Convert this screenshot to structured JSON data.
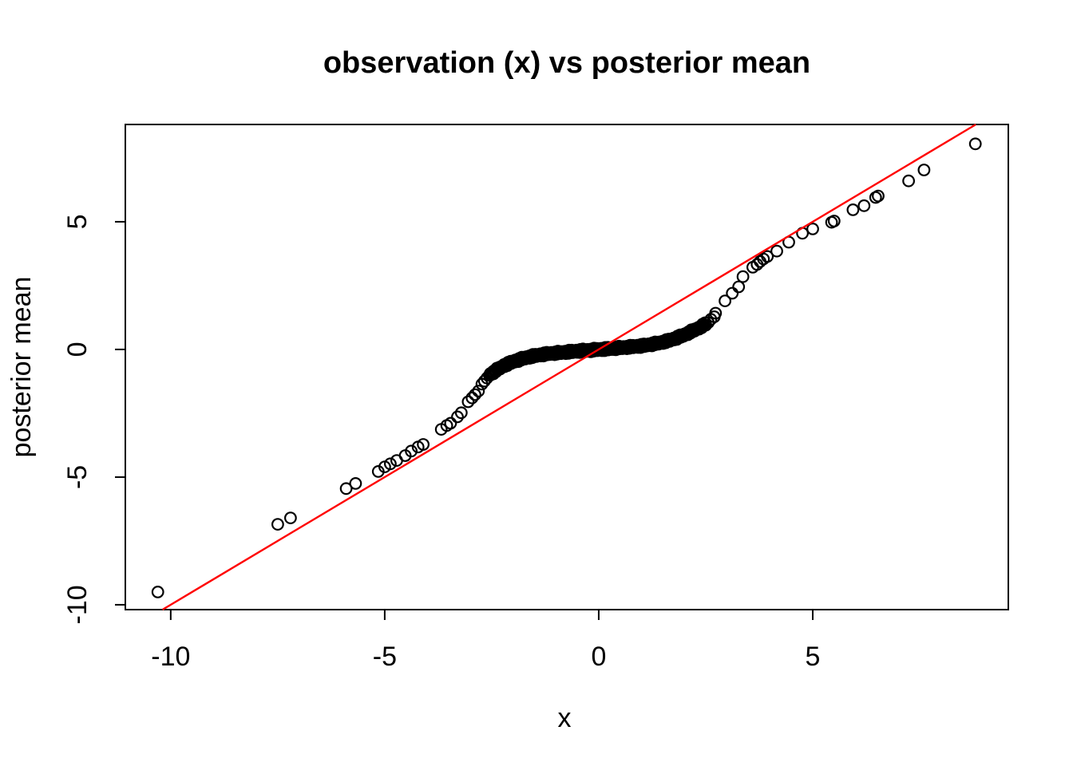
{
  "page": {
    "background": "#FFFFFF"
  },
  "chart_data": {
    "type": "scatter",
    "title": "observation (x) vs posterior mean",
    "xlabel": "x",
    "ylabel": "posterior mean",
    "xlim": [
      -11.06,
      9.57
    ],
    "ylim": [
      -10.19,
      8.81
    ],
    "x_ticks": [
      -10,
      -5,
      0,
      5
    ],
    "y_ticks": [
      -10,
      -5,
      0,
      5
    ],
    "grid": false,
    "legend": null,
    "marker": {
      "shape": "open-circle",
      "color": "#000000",
      "radius_px": 6.8,
      "stroke_px": 2.2
    },
    "reference_line": {
      "type": "identity",
      "intercept": 0,
      "slope": 1,
      "color": "#FF0000"
    },
    "points": [
      [
        -10.3,
        -9.5
      ],
      [
        -7.5,
        -6.85
      ],
      [
        -7.2,
        -6.6
      ],
      [
        -5.9,
        -5.45
      ],
      [
        -5.68,
        -5.25
      ],
      [
        -5.15,
        -4.78
      ],
      [
        -5.0,
        -4.6
      ],
      [
        -4.87,
        -4.48
      ],
      [
        -4.72,
        -4.35
      ],
      [
        -4.52,
        -4.16
      ],
      [
        -4.38,
        -3.98
      ],
      [
        -4.22,
        -3.82
      ],
      [
        -4.1,
        -3.72
      ],
      [
        -3.68,
        -3.13
      ],
      [
        -3.55,
        -2.98
      ],
      [
        -3.46,
        -2.89
      ],
      [
        -3.3,
        -2.64
      ],
      [
        -3.21,
        -2.48
      ],
      [
        -3.05,
        -2.05
      ],
      [
        -2.96,
        -1.9
      ],
      [
        -2.89,
        -1.77
      ],
      [
        -2.81,
        -1.63
      ],
      [
        -2.73,
        -1.36
      ],
      [
        -2.67,
        -1.24
      ],
      [
        -2.61,
        -1.12
      ],
      [
        -2.55,
        -1.02
      ],
      [
        2.5,
        0.95
      ],
      [
        2.56,
        1.05
      ],
      [
        2.62,
        1.18
      ],
      [
        2.7,
        1.28
      ],
      [
        2.73,
        1.42
      ],
      [
        2.95,
        1.9
      ],
      [
        3.12,
        2.2
      ],
      [
        3.27,
        2.45
      ],
      [
        3.37,
        2.85
      ],
      [
        3.6,
        3.22
      ],
      [
        3.7,
        3.33
      ],
      [
        3.77,
        3.44
      ],
      [
        3.85,
        3.54
      ],
      [
        3.94,
        3.64
      ],
      [
        4.16,
        3.85
      ],
      [
        4.44,
        4.2
      ],
      [
        4.76,
        4.55
      ],
      [
        5.0,
        4.72
      ],
      [
        5.44,
        4.98
      ],
      [
        5.5,
        5.03
      ],
      [
        5.94,
        5.47
      ],
      [
        6.2,
        5.63
      ],
      [
        6.47,
        5.95
      ],
      [
        6.53,
        6.01
      ],
      [
        7.24,
        6.6
      ],
      [
        7.6,
        7.03
      ],
      [
        8.8,
        8.05
      ]
    ],
    "dense_band": {
      "description": "several hundred overlapping open circles tracing a flat S-curve: posterior means strongly shrunk toward 0 for |x| < 2.5",
      "x_range": [
        -2.55,
        2.5
      ],
      "n_points": 330,
      "jitter_y": 0.07,
      "curve": [
        [
          -2.55,
          -1.0
        ],
        [
          -2.4,
          -0.82
        ],
        [
          -2.2,
          -0.62
        ],
        [
          -2.0,
          -0.48
        ],
        [
          -1.8,
          -0.37
        ],
        [
          -1.6,
          -0.28
        ],
        [
          -1.4,
          -0.22
        ],
        [
          -1.2,
          -0.17
        ],
        [
          -1.0,
          -0.14
        ],
        [
          -0.8,
          -0.11
        ],
        [
          -0.6,
          -0.08
        ],
        [
          -0.4,
          -0.05
        ],
        [
          -0.2,
          -0.03
        ],
        [
          0.0,
          0.0
        ],
        [
          0.2,
          0.02
        ],
        [
          0.4,
          0.05
        ],
        [
          0.6,
          0.08
        ],
        [
          0.8,
          0.11
        ],
        [
          1.0,
          0.14
        ],
        [
          1.2,
          0.19
        ],
        [
          1.4,
          0.25
        ],
        [
          1.6,
          0.33
        ],
        [
          1.8,
          0.44
        ],
        [
          2.0,
          0.57
        ],
        [
          2.2,
          0.73
        ],
        [
          2.35,
          0.85
        ],
        [
          2.5,
          1.0
        ]
      ]
    }
  }
}
